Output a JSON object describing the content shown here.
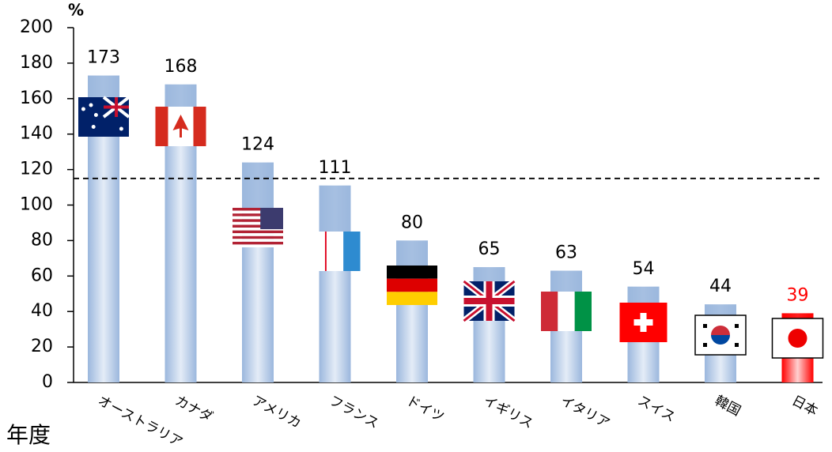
{
  "chart_data": {
    "type": "bar",
    "y_unit": "%",
    "x_label": "年度",
    "categories": [
      "オーストラリア",
      "カナダ",
      "アメリカ",
      "フランス",
      "ドイツ",
      "イギリス",
      "イタリア",
      "スイス",
      "韓国",
      "日本"
    ],
    "values": [
      173,
      168,
      124,
      111,
      80,
      65,
      63,
      54,
      44,
      39
    ],
    "colors": [
      "#9bb7dd",
      "#9bb7dd",
      "#9bb7dd",
      "#9bb7dd",
      "#9bb7dd",
      "#9bb7dd",
      "#9bb7dd",
      "#9bb7dd",
      "#9bb7dd",
      "#ff0000"
    ],
    "ylim": [
      0,
      200
    ],
    "yticks": [
      0,
      20,
      40,
      60,
      80,
      100,
      120,
      140,
      160,
      180,
      200
    ],
    "reference_line": 115
  }
}
